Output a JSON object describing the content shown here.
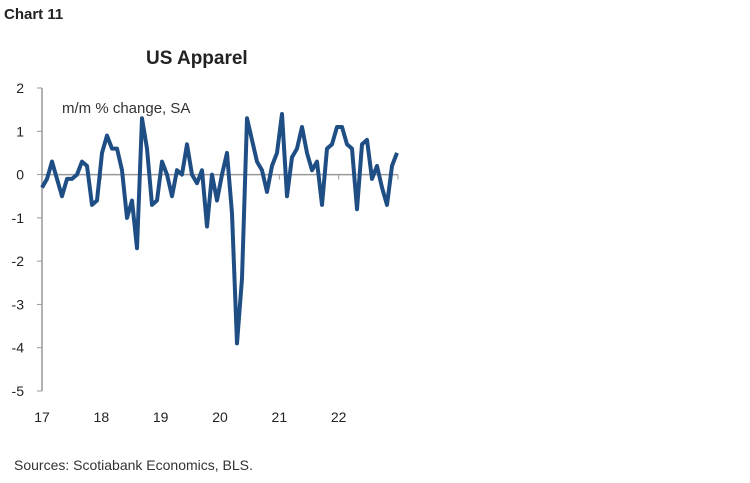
{
  "chart_label": "Chart 11",
  "source": "Sources: Scotiabank Economics, BLS.",
  "chart_data": {
    "type": "line",
    "title": "US Apparel",
    "subtitle": "m/m % change, SA",
    "ylim": [
      -5,
      2
    ],
    "yticks": [
      2,
      1,
      0,
      -1,
      -2,
      -3,
      -4,
      -5
    ],
    "xticks": [
      "17",
      "18",
      "19",
      "20",
      "21",
      "22"
    ],
    "x_start": "2017-01",
    "x_end": "2022-12",
    "frequency": "monthly",
    "grid": false,
    "color": "#1f4e85",
    "values": [
      -0.3,
      -0.1,
      0.3,
      -0.1,
      -0.5,
      -0.1,
      -0.1,
      0.0,
      0.3,
      0.2,
      -0.7,
      -0.6,
      0.5,
      0.9,
      0.6,
      0.6,
      0.1,
      -1.0,
      -0.6,
      -1.7,
      1.3,
      0.6,
      -0.7,
      -0.6,
      0.3,
      0.0,
      -0.5,
      0.1,
      0.0,
      0.7,
      0.0,
      -0.2,
      0.1,
      -1.2,
      0.0,
      -0.6,
      0.0,
      0.5,
      -0.9,
      -3.9,
      -2.4,
      1.3,
      0.8,
      0.3,
      0.1,
      -0.4,
      0.2,
      0.5,
      1.4,
      -0.5,
      0.4,
      0.6,
      1.1,
      0.5,
      0.1,
      0.3,
      -0.7,
      0.6,
      0.7,
      1.1,
      1.1,
      0.7,
      0.6,
      -0.8,
      0.7,
      0.8,
      -0.1,
      0.2,
      -0.3,
      -0.7,
      0.2,
      0.5
    ]
  }
}
